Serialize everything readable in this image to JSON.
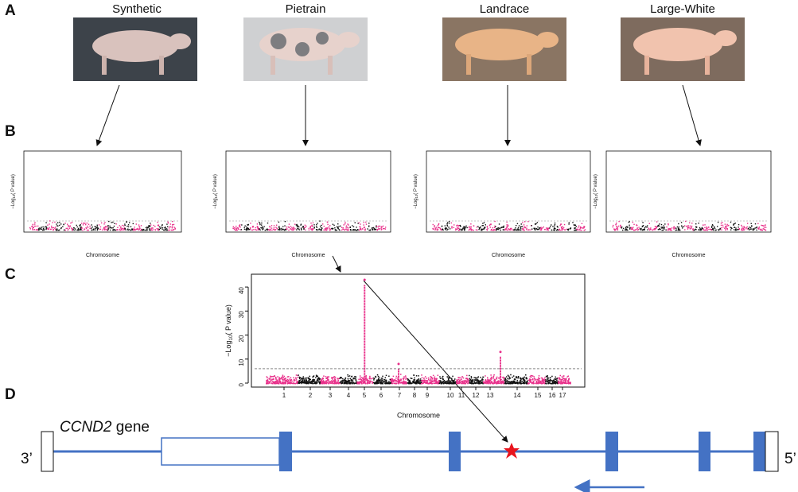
{
  "panels": [
    "A",
    "B",
    "C",
    "D"
  ],
  "breeds": [
    "Synthetic",
    "Pietrain",
    "Landrace",
    "Large-White"
  ],
  "manhattan": {
    "xlabel": "Chromosome",
    "ylabel": [
      "−Log",
      "10",
      "( P value)"
    ]
  },
  "panel_c": {
    "ylim": [
      0,
      45
    ],
    "yticks": [
      0,
      10,
      20,
      30,
      40
    ],
    "threshold": 6,
    "chromosomes": [
      "1",
      "2",
      "3",
      "4",
      "5",
      "6",
      "7",
      "8",
      "9",
      "10",
      "11",
      "12",
      "13",
      "14",
      "15",
      "16",
      "17"
    ],
    "peaks": [
      {
        "chromosome": "5",
        "value": 43
      },
      {
        "chromosome": "7",
        "value": 8
      },
      {
        "chromosome": "13",
        "value": 13
      }
    ]
  },
  "gene": {
    "name": "CCND2",
    "suffix": " gene",
    "end3": "3’",
    "end5": "5’"
  }
}
